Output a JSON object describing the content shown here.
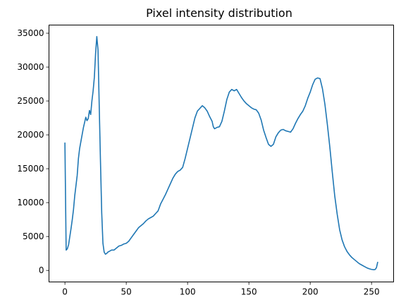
{
  "chart_data": {
    "type": "line",
    "title": "Pixel intensity distribution",
    "xlabel": "",
    "ylabel": "",
    "xlim": [
      -13,
      268
    ],
    "ylim": [
      -1700,
      36200
    ],
    "x_ticks": [
      0,
      50,
      100,
      150,
      200,
      250
    ],
    "y_ticks": [
      0,
      5000,
      10000,
      15000,
      20000,
      25000,
      30000,
      35000
    ],
    "grid": false,
    "line_color": "#1f77b4",
    "series": [
      {
        "points": [
          [
            0,
            18800
          ],
          [
            1,
            3000
          ],
          [
            2,
            3200
          ],
          [
            3,
            3800
          ],
          [
            4,
            5000
          ],
          [
            5,
            6200
          ],
          [
            6,
            7500
          ],
          [
            7,
            9000
          ],
          [
            8,
            11000
          ],
          [
            9,
            12500
          ],
          [
            10,
            14000
          ],
          [
            11,
            16500
          ],
          [
            12,
            18000
          ],
          [
            13,
            19000
          ],
          [
            14,
            20000
          ],
          [
            15,
            21000
          ],
          [
            16,
            21800
          ],
          [
            17,
            22600
          ],
          [
            18,
            22100
          ],
          [
            19,
            22400
          ],
          [
            20,
            23600
          ],
          [
            21,
            23000
          ],
          [
            22,
            25000
          ],
          [
            23,
            26500
          ],
          [
            24,
            28500
          ],
          [
            25,
            32000
          ],
          [
            26,
            34500
          ],
          [
            27,
            32500
          ],
          [
            28,
            24000
          ],
          [
            29,
            16000
          ],
          [
            30,
            8500
          ],
          [
            31,
            4000
          ],
          [
            32,
            2700
          ],
          [
            33,
            2400
          ],
          [
            34,
            2500
          ],
          [
            35,
            2700
          ],
          [
            36,
            2800
          ],
          [
            38,
            3000
          ],
          [
            40,
            3000
          ],
          [
            42,
            3300
          ],
          [
            44,
            3600
          ],
          [
            46,
            3700
          ],
          [
            48,
            3900
          ],
          [
            50,
            4000
          ],
          [
            52,
            4300
          ],
          [
            54,
            4800
          ],
          [
            56,
            5300
          ],
          [
            58,
            5800
          ],
          [
            60,
            6300
          ],
          [
            62,
            6600
          ],
          [
            64,
            6900
          ],
          [
            66,
            7300
          ],
          [
            68,
            7600
          ],
          [
            70,
            7800
          ],
          [
            72,
            8000
          ],
          [
            74,
            8400
          ],
          [
            76,
            8800
          ],
          [
            78,
            9800
          ],
          [
            80,
            10500
          ],
          [
            82,
            11200
          ],
          [
            84,
            12000
          ],
          [
            86,
            12800
          ],
          [
            88,
            13600
          ],
          [
            90,
            14200
          ],
          [
            92,
            14600
          ],
          [
            94,
            14800
          ],
          [
            96,
            15200
          ],
          [
            98,
            16500
          ],
          [
            100,
            18000
          ],
          [
            102,
            19500
          ],
          [
            104,
            21000
          ],
          [
            106,
            22500
          ],
          [
            108,
            23500
          ],
          [
            110,
            23900
          ],
          [
            112,
            24300
          ],
          [
            114,
            24000
          ],
          [
            116,
            23500
          ],
          [
            118,
            22700
          ],
          [
            120,
            22000
          ],
          [
            121,
            21200
          ],
          [
            122,
            20900
          ],
          [
            124,
            21100
          ],
          [
            126,
            21200
          ],
          [
            128,
            22000
          ],
          [
            130,
            23500
          ],
          [
            132,
            25200
          ],
          [
            134,
            26300
          ],
          [
            136,
            26700
          ],
          [
            138,
            26500
          ],
          [
            140,
            26700
          ],
          [
            142,
            26100
          ],
          [
            144,
            25500
          ],
          [
            146,
            25000
          ],
          [
            148,
            24600
          ],
          [
            150,
            24300
          ],
          [
            152,
            24000
          ],
          [
            154,
            23800
          ],
          [
            156,
            23700
          ],
          [
            158,
            23200
          ],
          [
            160,
            22200
          ],
          [
            162,
            20700
          ],
          [
            164,
            19600
          ],
          [
            166,
            18600
          ],
          [
            168,
            18300
          ],
          [
            170,
            18600
          ],
          [
            172,
            19700
          ],
          [
            174,
            20300
          ],
          [
            176,
            20700
          ],
          [
            178,
            20800
          ],
          [
            180,
            20600
          ],
          [
            182,
            20500
          ],
          [
            184,
            20400
          ],
          [
            186,
            20900
          ],
          [
            188,
            21700
          ],
          [
            190,
            22400
          ],
          [
            192,
            23000
          ],
          [
            194,
            23500
          ],
          [
            196,
            24300
          ],
          [
            198,
            25400
          ],
          [
            200,
            26300
          ],
          [
            202,
            27400
          ],
          [
            204,
            28200
          ],
          [
            206,
            28400
          ],
          [
            208,
            28300
          ],
          [
            210,
            26800
          ],
          [
            212,
            24500
          ],
          [
            214,
            21500
          ],
          [
            216,
            18200
          ],
          [
            218,
            14500
          ],
          [
            220,
            11000
          ],
          [
            222,
            8300
          ],
          [
            224,
            6000
          ],
          [
            226,
            4500
          ],
          [
            228,
            3500
          ],
          [
            230,
            2800
          ],
          [
            232,
            2300
          ],
          [
            234,
            1900
          ],
          [
            236,
            1600
          ],
          [
            238,
            1300
          ],
          [
            240,
            1000
          ],
          [
            242,
            800
          ],
          [
            244,
            600
          ],
          [
            246,
            400
          ],
          [
            248,
            250
          ],
          [
            250,
            150
          ],
          [
            252,
            100
          ],
          [
            253,
            150
          ],
          [
            254,
            400
          ],
          [
            255,
            1200
          ]
        ]
      }
    ]
  }
}
